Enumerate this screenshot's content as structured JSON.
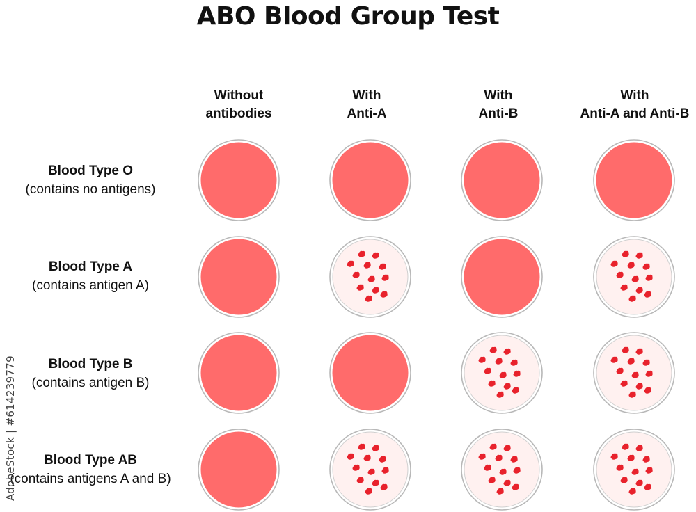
{
  "title": "ABO Blood Group Test",
  "side_text": "AdobeStock | #614239779",
  "colors": {
    "blood": "#FF6B6B",
    "clump": "#E8222C",
    "clear_fill": "#FFF1F0",
    "rim": "#B8B8B8"
  },
  "columns": [
    {
      "line1": "Without",
      "line2": "antibodies"
    },
    {
      "line1": "With",
      "line2": "Anti-A"
    },
    {
      "line1": "With",
      "line2": "Anti-B"
    },
    {
      "line1": "With",
      "line2": "Anti-A and Anti-B"
    }
  ],
  "rows": [
    {
      "name": "Blood Type O",
      "desc": "(contains no antigens)",
      "agglutination": [
        false,
        false,
        false,
        false
      ]
    },
    {
      "name": "Blood Type A",
      "desc": "(contains antigen A)",
      "agglutination": [
        false,
        true,
        false,
        true
      ]
    },
    {
      "name": "Blood Type B",
      "desc": "(contains antigen B)",
      "agglutination": [
        false,
        false,
        true,
        true
      ]
    },
    {
      "name": "Blood Type AB",
      "desc": "(contains antigens A and B)",
      "agglutination": [
        false,
        true,
        true,
        true
      ]
    }
  ]
}
